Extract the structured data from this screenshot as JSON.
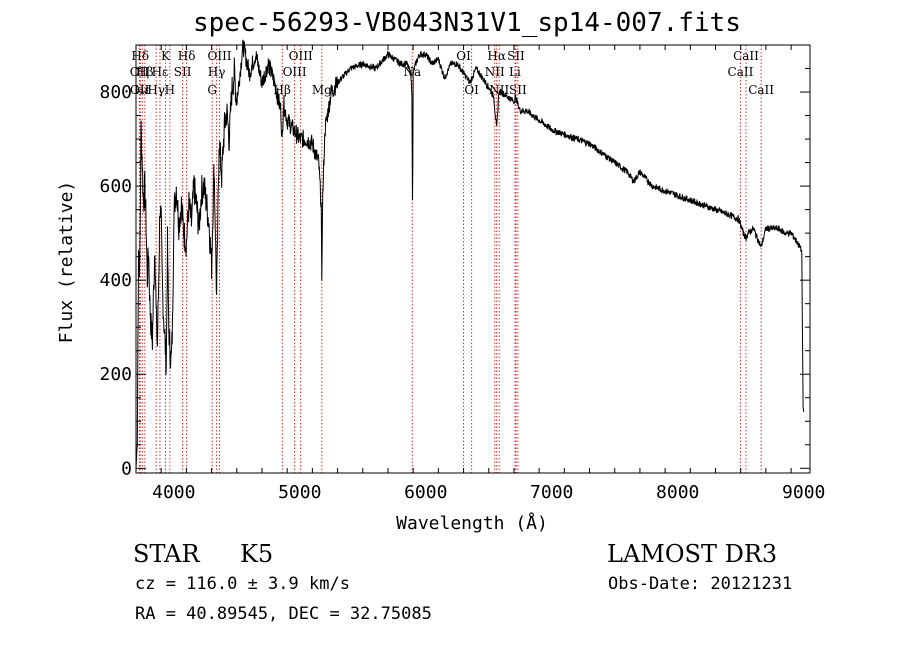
{
  "chart_data": {
    "type": "line",
    "title": "spec-56293-VB043N31V1_sp14-007.fits",
    "xlabel": "Wavelength (Å)",
    "ylabel": "Flux (relative)",
    "xlim": [
      3700,
      9050
    ],
    "ylim": [
      -10,
      900
    ],
    "xticks": [
      4000,
      5000,
      6000,
      7000,
      8000,
      9000
    ],
    "yticks": [
      0,
      200,
      400,
      600,
      800
    ],
    "spectrum": {
      "x": [
        3700,
        3710,
        3720,
        3730,
        3740,
        3750,
        3760,
        3770,
        3780,
        3790,
        3800,
        3810,
        3820,
        3830,
        3840,
        3850,
        3860,
        3870,
        3880,
        3890,
        3900,
        3910,
        3920,
        3930,
        3940,
        3950,
        3960,
        3970,
        3980,
        3990,
        4000,
        4020,
        4040,
        4060,
        4080,
        4100,
        4120,
        4140,
        4160,
        4180,
        4200,
        4220,
        4240,
        4260,
        4280,
        4300,
        4320,
        4340,
        4360,
        4380,
        4400,
        4420,
        4440,
        4460,
        4480,
        4500,
        4550,
        4600,
        4650,
        4700,
        4750,
        4800,
        4850,
        4860,
        4870,
        4900,
        4950,
        5000,
        5050,
        5100,
        5150,
        5170,
        5175,
        5180,
        5200,
        5250,
        5300,
        5400,
        5500,
        5600,
        5700,
        5800,
        5850,
        5880,
        5890,
        5896,
        5900,
        5920,
        5950,
        6000,
        6050,
        6100,
        6150,
        6200,
        6250,
        6300,
        6350,
        6400,
        6450,
        6500,
        6540,
        6563,
        6580,
        6600,
        6650,
        6700,
        6710,
        6750,
        6800,
        6900,
        7000,
        7100,
        7200,
        7300,
        7400,
        7500,
        7600,
        7650,
        7700,
        7800,
        7900,
        8000,
        8100,
        8200,
        8300,
        8400,
        8480,
        8498,
        8520,
        8542,
        8560,
        8600,
        8662,
        8700,
        8800,
        8850,
        8900,
        8950,
        8970,
        8985,
        8995,
        9000
      ],
      "y": [
        0,
        50,
        480,
        420,
        720,
        650,
        560,
        600,
        520,
        400,
        470,
        350,
        300,
        270,
        380,
        480,
        330,
        260,
        400,
        560,
        520,
        380,
        320,
        270,
        220,
        480,
        300,
        250,
        230,
        300,
        540,
        600,
        520,
        560,
        500,
        480,
        560,
        520,
        600,
        560,
        510,
        590,
        600,
        560,
        520,
        430,
        650,
        360,
        700,
        620,
        720,
        760,
        700,
        800,
        840,
        780,
        900,
        840,
        880,
        820,
        860,
        820,
        760,
        690,
        780,
        740,
        720,
        700,
        700,
        690,
        650,
        560,
        380,
        560,
        720,
        800,
        820,
        850,
        860,
        850,
        880,
        860,
        860,
        840,
        800,
        520,
        840,
        860,
        880,
        880,
        860,
        870,
        830,
        860,
        860,
        840,
        820,
        850,
        830,
        810,
        790,
        720,
        800,
        800,
        790,
        780,
        790,
        760,
        760,
        740,
        720,
        710,
        700,
        690,
        670,
        650,
        630,
        610,
        630,
        600,
        590,
        580,
        570,
        560,
        550,
        540,
        530,
        520,
        500,
        490,
        500,
        510,
        470,
        510,
        510,
        500,
        500,
        480,
        470,
        460,
        130,
        120
      ]
    },
    "lines": [
      {
        "name": "Hδ",
        "x": 3734,
        "row": 0
      },
      {
        "name": "OII",
        "x": 3727,
        "row": 1
      },
      {
        "name": "OII",
        "x": 3729,
        "row": 2
      },
      {
        "name": "Hε",
        "x": 3750,
        "row": 2
      },
      {
        "name": "Hβ",
        "x": 3770,
        "row": 1
      },
      {
        "name": "K",
        "x": 3934,
        "row": 0
      },
      {
        "name": "Hε",
        "x": 3890,
        "row": 1
      },
      {
        "name": "Hγ",
        "x": 3860,
        "row": 2
      },
      {
        "name": "Hδ",
        "x": 4102,
        "row": 0
      },
      {
        "name": "SII",
        "x": 4070,
        "row": 1
      },
      {
        "name": "H",
        "x": 3969,
        "row": 2
      },
      {
        "name": "OIII",
        "x": 4363,
        "row": 0
      },
      {
        "name": "Hγ",
        "x": 4340,
        "row": 1
      },
      {
        "name": "G",
        "x": 4305,
        "row": 2
      },
      {
        "name": "OIII",
        "x": 5007,
        "row": 0
      },
      {
        "name": "OIII",
        "x": 4959,
        "row": 1
      },
      {
        "name": "Hβ",
        "x": 4861,
        "row": 2
      },
      {
        "name": "Mg",
        "x": 5175,
        "row": 2
      },
      {
        "name": "Na",
        "x": 5893,
        "row": 1
      },
      {
        "name": "OI",
        "x": 6300,
        "row": 0
      },
      {
        "name": "OI",
        "x": 6364,
        "row": 2
      },
      {
        "name": "Hα",
        "x": 6563,
        "row": 0
      },
      {
        "name": "NII",
        "x": 6548,
        "row": 1
      },
      {
        "name": "NII",
        "x": 6583,
        "row": 2
      },
      {
        "name": "SII",
        "x": 6716,
        "row": 0
      },
      {
        "name": "Li",
        "x": 6708,
        "row": 1
      },
      {
        "name": "SII",
        "x": 6731,
        "row": 2
      },
      {
        "name": "CaII",
        "x": 8542,
        "row": 0
      },
      {
        "name": "CaII",
        "x": 8498,
        "row": 1
      },
      {
        "name": "CaII",
        "x": 8662,
        "row": 2
      }
    ]
  },
  "info": {
    "class": "STAR",
    "subclass": "K5",
    "survey": "LAMOST DR3",
    "cz": "cz = 116.0 ± 3.9 km/s",
    "obs_date": "Obs-Date: 20121231",
    "coords": "RA =  40.89545, DEC =  32.75085"
  },
  "colors": {
    "axis": "#000000",
    "spectrum": "#000000",
    "line_marker": "#d2322d"
  }
}
